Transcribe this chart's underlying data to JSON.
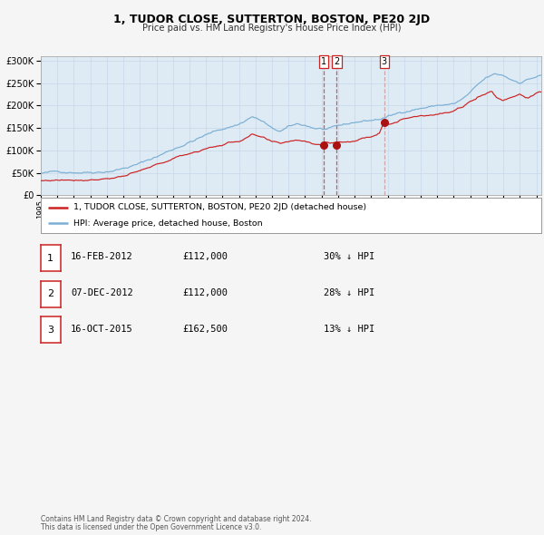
{
  "title": "1, TUDOR CLOSE, SUTTERTON, BOSTON, PE20 2JD",
  "subtitle": "Price paid vs. HM Land Registry's House Price Index (HPI)",
  "legend_property": "1, TUDOR CLOSE, SUTTERTON, BOSTON, PE20 2JD (detached house)",
  "legend_hpi": "HPI: Average price, detached house, Boston",
  "footer1": "Contains HM Land Registry data © Crown copyright and database right 2024.",
  "footer2": "This data is licensed under the Open Government Licence v3.0.",
  "transactions": [
    {
      "num": 1,
      "date": "16-FEB-2012",
      "price": 112000,
      "pct": "30%",
      "dir": "↓"
    },
    {
      "num": 2,
      "date": "07-DEC-2012",
      "price": 112000,
      "pct": "28%",
      "dir": "↓"
    },
    {
      "num": 3,
      "date": "16-OCT-2015",
      "price": 162500,
      "pct": "13%",
      "dir": "↓"
    }
  ],
  "transaction_dates_decimal": [
    2012.12,
    2012.92,
    2015.79
  ],
  "transaction_prices": [
    112000,
    112000,
    162500
  ],
  "ylim": [
    0,
    310000
  ],
  "xlim_start": 1995.0,
  "xlim_end": 2025.3,
  "hpi_color": "#7bafd4",
  "property_color": "#cc2222",
  "dot_color": "#aa1111",
  "background_chart": "#deeaf4",
  "background_fig": "#f5f5f5",
  "grid_color": "#c8d8e8",
  "vline12_color": "#dd4444",
  "vline3_color": "#cc9999"
}
